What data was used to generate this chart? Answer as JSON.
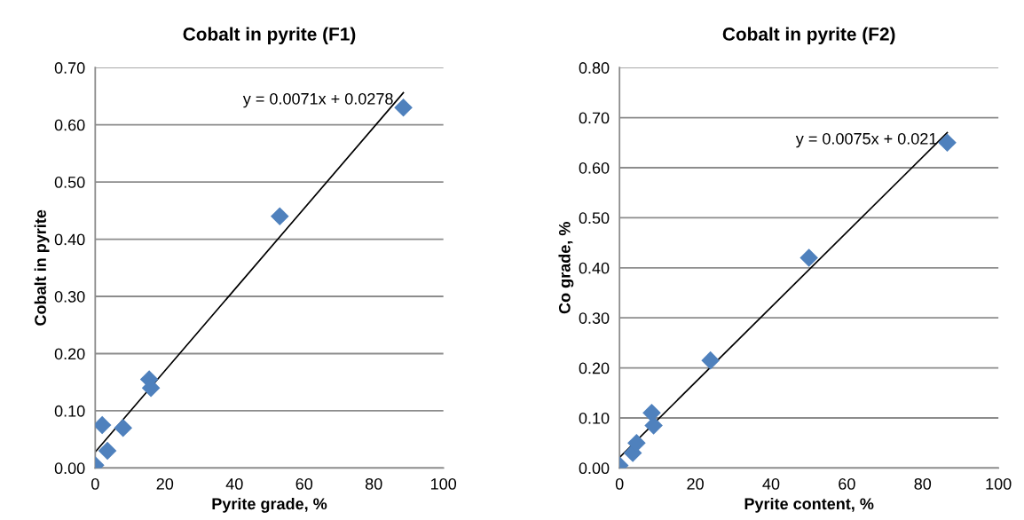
{
  "chart_data": [
    {
      "type": "scatter",
      "title": "Cobalt in pyrite (F1)",
      "xlabel": "Pyrite grade, %",
      "ylabel": "Cobalt in pyrite",
      "grid": "y",
      "legend": false,
      "xlim": [
        0,
        100
      ],
      "xticks": [
        0,
        20,
        40,
        60,
        80,
        100
      ],
      "ylim": [
        0,
        0.7
      ],
      "yticks": [
        {
          "value": 0,
          "label": "0.00"
        },
        {
          "value": 0.1,
          "label": "0.10"
        },
        {
          "value": 0.2,
          "label": "0.20"
        },
        {
          "value": 0.3,
          "label": "0.30"
        },
        {
          "value": 0.4,
          "label": "0.40"
        },
        {
          "value": 0.5,
          "label": "0.50"
        },
        {
          "value": 0.6,
          "label": "0.60"
        },
        {
          "value": 0.7,
          "label": "0.70"
        }
      ],
      "annotations": [
        "y = 0.0071x + 0.0278"
      ],
      "series": [
        {
          "color": "#4f81bd",
          "marker": "diamond",
          "x": [
            0,
            2,
            3.5,
            8,
            15.5,
            16,
            53,
            88.5
          ],
          "values": [
            0.005,
            0.075,
            0.03,
            0.07,
            0.155,
            0.14,
            0.44,
            0.63
          ]
        },
        {
          "type": "line",
          "color": "#000000",
          "x": [
            0,
            88.5
          ],
          "values": [
            0.028,
            0.656
          ]
        }
      ]
    },
    {
      "type": "scatter",
      "title": "Cobalt in pyrite (F2)",
      "xlabel": "Pyrite content, %",
      "ylabel": "Co grade, %",
      "grid": "y",
      "legend": false,
      "xlim": [
        0,
        100
      ],
      "xticks": [
        0,
        20,
        40,
        60,
        80,
        100
      ],
      "ylim": [
        0,
        0.8
      ],
      "yticks": [
        {
          "value": 0,
          "label": "0.00"
        },
        {
          "value": 0.1,
          "label": "0.10"
        },
        {
          "value": 0.2,
          "label": "0.20"
        },
        {
          "value": 0.3,
          "label": "0.30"
        },
        {
          "value": 0.4,
          "label": "0.40"
        },
        {
          "value": 0.5,
          "label": "0.50"
        },
        {
          "value": 0.6,
          "label": "0.60"
        },
        {
          "value": 0.7,
          "label": "0.70"
        },
        {
          "value": 0.8,
          "label": "0.80"
        }
      ],
      "annotations": [
        "y = 0.0075x + 0.021"
      ],
      "series": [
        {
          "color": "#4f81bd",
          "marker": "diamond",
          "x": [
            0,
            3.5,
            4.5,
            8.5,
            9,
            24,
            50,
            86.5
          ],
          "values": [
            0.005,
            0.03,
            0.05,
            0.11,
            0.085,
            0.215,
            0.42,
            0.65
          ]
        },
        {
          "type": "line",
          "color": "#000000",
          "x": [
            0,
            86.5
          ],
          "values": [
            0.021,
            0.67
          ]
        }
      ]
    }
  ]
}
